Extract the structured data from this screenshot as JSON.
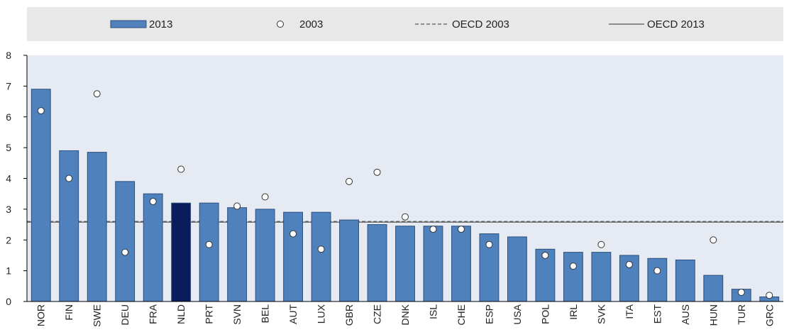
{
  "chart_data": {
    "type": "bar",
    "categories": [
      "NOR",
      "FIN",
      "SWE",
      "DEU",
      "FRA",
      "NLD",
      "PRT",
      "SVN",
      "BEL",
      "AUT",
      "LUX",
      "GBR",
      "CZE",
      "DNK",
      "ISL",
      "CHE",
      "ESP",
      "USA",
      "POL",
      "IRL",
      "SVK",
      "ITA",
      "EST",
      "AUS",
      "HUN",
      "TUR",
      "GRC"
    ],
    "series": [
      {
        "name": "2013",
        "mark": "bar",
        "values": [
          6.9,
          4.9,
          4.85,
          3.9,
          3.5,
          3.2,
          3.2,
          3.05,
          3.0,
          2.9,
          2.9,
          2.65,
          2.5,
          2.45,
          2.45,
          2.45,
          2.2,
          2.1,
          1.7,
          1.6,
          1.6,
          1.5,
          1.4,
          1.35,
          0.85,
          0.4,
          0.15
        ]
      },
      {
        "name": "2003",
        "mark": "circle",
        "values": [
          6.2,
          4.0,
          6.75,
          1.6,
          3.25,
          4.3,
          1.85,
          3.1,
          3.4,
          2.2,
          1.7,
          3.9,
          4.2,
          2.75,
          2.35,
          2.35,
          1.85,
          null,
          1.5,
          1.15,
          1.85,
          1.2,
          1.0,
          null,
          2.0,
          0.3,
          0.2
        ]
      }
    ],
    "reference_lines": [
      {
        "name": "OECD 2003",
        "value": 2.6,
        "style": "dashed"
      },
      {
        "name": "OECD 2013",
        "value": 2.58,
        "style": "solid"
      }
    ],
    "highlight_category": "NLD",
    "ylim": [
      0,
      8
    ],
    "yticks": [
      "0",
      "1",
      "2",
      "3",
      "4",
      "5",
      "6",
      "7",
      "8"
    ],
    "legend": {
      "placement": "top",
      "items": [
        "2013",
        "2003",
        "OECD 2003",
        "OECD 2013"
      ]
    },
    "colors": {
      "bar": "#4f81bd",
      "bar_highlight": "#0b1c5c",
      "bar_border": "#2d4f7c",
      "plot_bg": "#e6ebf3",
      "legend_bg": "#e8e8e8",
      "ref_line": "#555555"
    },
    "title": "",
    "xlabel": "",
    "ylabel": "",
    "grid": false
  }
}
